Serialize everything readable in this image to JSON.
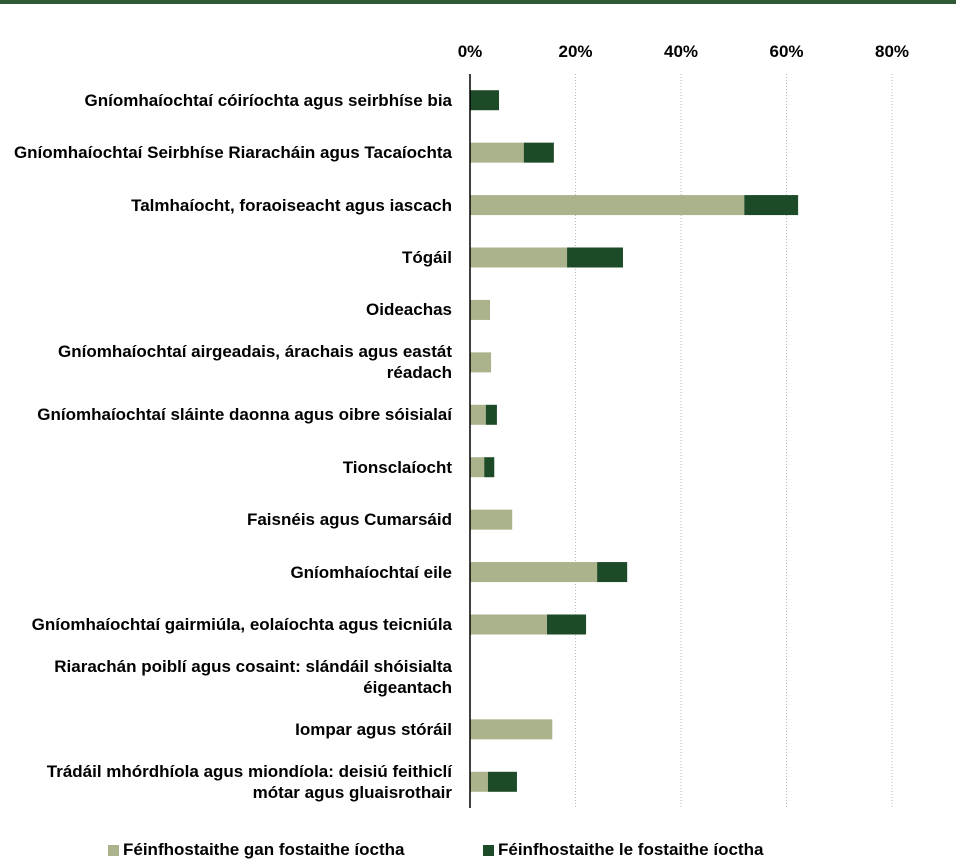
{
  "chart_data": {
    "type": "stacked-barh",
    "categories": [
      "Gníomhaíochtaí cóiríochta agus seirbhíse bia",
      "Gníomhaíochtaí Seirbhíse Riaracháin agus Tacaíochta",
      "Talmhaíocht, foraoiseacht agus iascach",
      "Tógáil",
      "Oideachas",
      "Gníomhaíochtaí airgeadais, árachais agus eastát réadach",
      "Gníomhaíochtaí sláinte daonna agus oibre sóisialaí",
      "Tionsclaíocht",
      "Faisnéis agus Cumarsáid",
      "Gníomhaíochtaí eile",
      "Gníomhaíochtaí gairmiúla, eolaíochta agus teicniúla",
      "Riarachán poiblí agus cosaint: slándáil shóisialta éigeantach",
      "Iompar agus stóráil",
      "Trádáil mhórdhíola agus miondíola: deisiú feithiclí mótar agus gluaisrothair"
    ],
    "series": [
      {
        "name": "Féinfhostaithe gan fostaithe íoctha",
        "color": "#aab38b",
        "values": [
          0,
          10.2,
          52,
          18.4,
          3.8,
          4.0,
          3.0,
          2.7,
          8.0,
          24.1,
          14.6,
          0,
          15.6,
          3.4
        ]
      },
      {
        "name": "Féinfhostaithe le fostaithe íoctha",
        "color": "#1d4a27",
        "values": [
          5.5,
          5.7,
          10.2,
          10.6,
          0,
          0,
          2.1,
          1.9,
          0,
          5.7,
          7.4,
          0,
          0,
          5.5
        ]
      }
    ],
    "xlim": [
      0,
      80
    ],
    "xticks": [
      {
        "value": 0,
        "label": "0%"
      },
      {
        "value": 20,
        "label": "20%"
      },
      {
        "value": 40,
        "label": "40%"
      },
      {
        "value": 60,
        "label": "60%"
      },
      {
        "value": 80,
        "label": "80%"
      }
    ],
    "grid": true
  }
}
